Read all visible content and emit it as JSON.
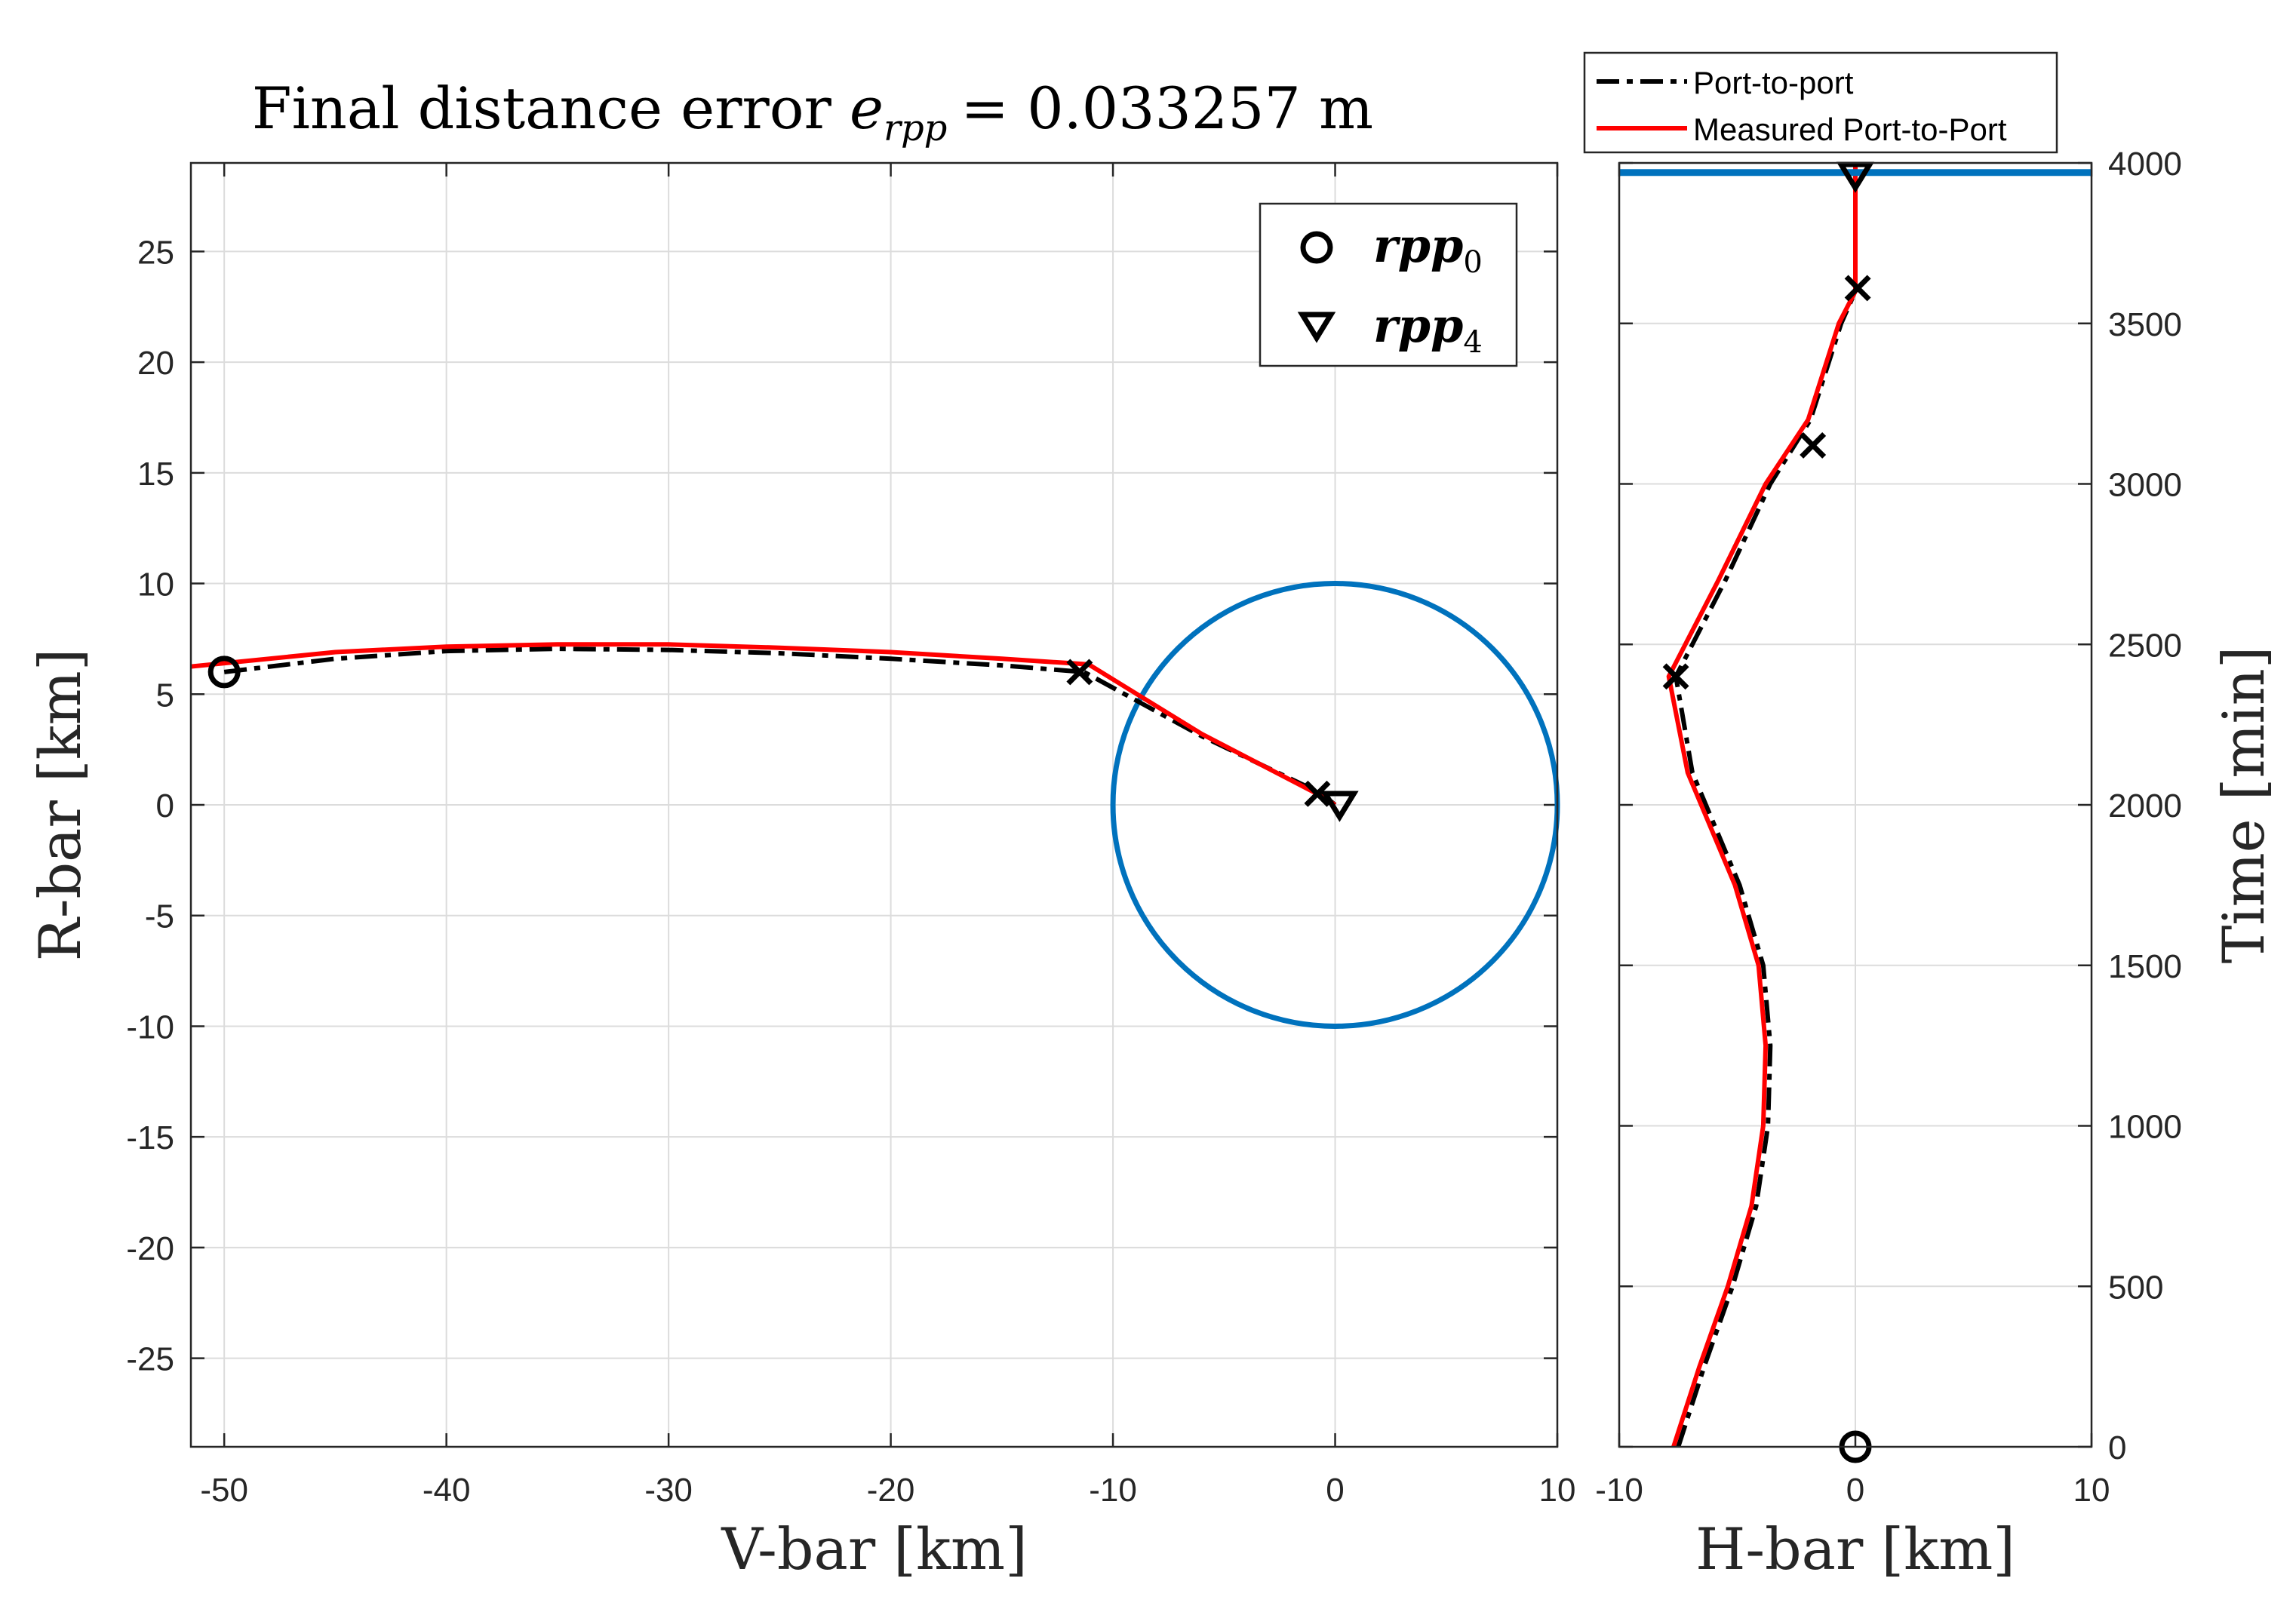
{
  "chart_data": [
    {
      "type": "line",
      "title_prefix": "Final distance error",
      "title_symbol": "e",
      "title_subscript": "rpp",
      "title_value": "= 0.033257 m",
      "xlabel": "V-bar [km]",
      "ylabel": "R-bar [km]",
      "xlim": [
        -51.5,
        10
      ],
      "ylim": [
        -29,
        29
      ],
      "xticks": [
        -50,
        -40,
        -30,
        -20,
        -10,
        0,
        10
      ],
      "yticks": [
        -25,
        -20,
        -15,
        -10,
        -5,
        0,
        5,
        10,
        15,
        20,
        25
      ],
      "grid": true,
      "legend_position": "top-right",
      "legend": [
        {
          "marker": "circle",
          "label": "rpp",
          "subscript": "0"
        },
        {
          "marker": "triangle-down",
          "label": "rpp",
          "subscript": "4"
        }
      ],
      "series": [
        {
          "name": "Port-to-port",
          "color": "#000000",
          "style": "dash-dot",
          "x": [
            -50,
            -45,
            -40,
            -35,
            -30,
            -25,
            -20,
            -15,
            -11.3,
            -6,
            -0.6,
            0
          ],
          "y": [
            6.0,
            6.6,
            6.95,
            7.05,
            7.0,
            6.85,
            6.6,
            6.3,
            6.0,
            3.1,
            0.5,
            0
          ]
        },
        {
          "name": "Measured Port-to-Port",
          "color": "#ff0000",
          "style": "solid",
          "x": [
            -51.5,
            -45,
            -40,
            -35,
            -30,
            -25,
            -20,
            -15,
            -11.1,
            -6,
            -1.0,
            0
          ],
          "y": [
            6.25,
            6.9,
            7.15,
            7.25,
            7.25,
            7.1,
            6.9,
            6.6,
            6.35,
            3.2,
            0.6,
            0
          ]
        },
        {
          "name": "circle",
          "color": "#0072bd",
          "style": "solid",
          "center": [
            0,
            0
          ],
          "radius": 10
        }
      ],
      "markers": [
        {
          "type": "circle",
          "x": -50,
          "y": 6.0
        },
        {
          "type": "x",
          "x": -11.5,
          "y": 6.0
        },
        {
          "type": "x",
          "x": -0.8,
          "y": 0.5
        },
        {
          "type": "triangle-down",
          "x": 0.2,
          "y": 0.0
        }
      ]
    },
    {
      "type": "line",
      "xlabel": "H-bar [km]",
      "ylabel": "Time [min]",
      "xlim": [
        -10,
        10
      ],
      "ylim": [
        0,
        4000
      ],
      "xticks": [
        -10,
        0,
        10
      ],
      "yticks": [
        0,
        500,
        1000,
        1500,
        2000,
        2500,
        3000,
        3500,
        4000
      ],
      "grid": true,
      "legend_position": "top",
      "legend": [
        {
          "style": "dash-dot",
          "color": "#000000",
          "label": "Port-to-port"
        },
        {
          "style": "solid",
          "color": "#ff0000",
          "label": "Measured Port-to-Port"
        }
      ],
      "series": [
        {
          "name": "Port-to-port",
          "color": "#000000",
          "style": "dash-dot",
          "x": [
            -7.5,
            -6.4,
            -5.2,
            -4.2,
            -3.7,
            -3.6,
            -3.9,
            -4.9,
            -6.9,
            -7.6,
            -5.5,
            -3.6,
            -1.9,
            -0.6,
            0,
            0
          ],
          "y": [
            0,
            250,
            500,
            750,
            1000,
            1250,
            1500,
            1750,
            2100,
            2400,
            2700,
            3000,
            3200,
            3500,
            3600,
            3970
          ]
        },
        {
          "name": "Measured Port-to-Port",
          "color": "#ff0000",
          "style": "solid",
          "x": [
            -7.7,
            -6.6,
            -5.4,
            -4.4,
            -3.9,
            -3.8,
            -4.1,
            -5.1,
            -7.1,
            -7.9,
            -5.8,
            -3.8,
            -2.0,
            -0.7,
            0,
            0
          ],
          "y": [
            0,
            250,
            500,
            750,
            1000,
            1250,
            1500,
            1750,
            2100,
            2400,
            2700,
            3000,
            3200,
            3500,
            3600,
            4000
          ]
        },
        {
          "name": "horizontal line",
          "color": "#0072bd",
          "style": "solid",
          "y": 3970
        }
      ],
      "markers": [
        {
          "type": "circle",
          "x": 0,
          "y": 0
        },
        {
          "type": "x",
          "x": -7.6,
          "y": 2400
        },
        {
          "type": "x",
          "x": -1.8,
          "y": 3120
        },
        {
          "type": "x",
          "x": 0.1,
          "y": 3610
        },
        {
          "type": "triangle-down",
          "x": 0,
          "y": 3960
        }
      ]
    }
  ]
}
